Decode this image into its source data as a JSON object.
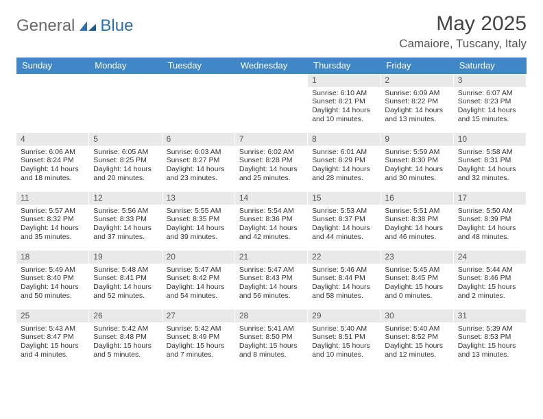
{
  "brand": {
    "general": "General",
    "blue": "Blue"
  },
  "title": "May 2025",
  "location": "Camaiore, Tuscany, Italy",
  "colors": {
    "header_bg": "#3f87c6",
    "header_fg": "#ffffff",
    "daynum_bg": "#e9e9e9",
    "text": "#333333",
    "logo_gray": "#6a6a6a",
    "logo_blue": "#2f6fb0"
  },
  "weekdays": [
    "Sunday",
    "Monday",
    "Tuesday",
    "Wednesday",
    "Thursday",
    "Friday",
    "Saturday"
  ],
  "grid": {
    "columns": 7,
    "rows": 5,
    "first_weekday_index": 4
  },
  "cells": [
    {
      "day": "",
      "sunrise": "",
      "sunset": "",
      "daylight": ""
    },
    {
      "day": "",
      "sunrise": "",
      "sunset": "",
      "daylight": ""
    },
    {
      "day": "",
      "sunrise": "",
      "sunset": "",
      "daylight": ""
    },
    {
      "day": "",
      "sunrise": "",
      "sunset": "",
      "daylight": ""
    },
    {
      "day": "1",
      "sunrise": "Sunrise: 6:10 AM",
      "sunset": "Sunset: 8:21 PM",
      "daylight": "Daylight: 14 hours and 10 minutes."
    },
    {
      "day": "2",
      "sunrise": "Sunrise: 6:09 AM",
      "sunset": "Sunset: 8:22 PM",
      "daylight": "Daylight: 14 hours and 13 minutes."
    },
    {
      "day": "3",
      "sunrise": "Sunrise: 6:07 AM",
      "sunset": "Sunset: 8:23 PM",
      "daylight": "Daylight: 14 hours and 15 minutes."
    },
    {
      "day": "4",
      "sunrise": "Sunrise: 6:06 AM",
      "sunset": "Sunset: 8:24 PM",
      "daylight": "Daylight: 14 hours and 18 minutes."
    },
    {
      "day": "5",
      "sunrise": "Sunrise: 6:05 AM",
      "sunset": "Sunset: 8:25 PM",
      "daylight": "Daylight: 14 hours and 20 minutes."
    },
    {
      "day": "6",
      "sunrise": "Sunrise: 6:03 AM",
      "sunset": "Sunset: 8:27 PM",
      "daylight": "Daylight: 14 hours and 23 minutes."
    },
    {
      "day": "7",
      "sunrise": "Sunrise: 6:02 AM",
      "sunset": "Sunset: 8:28 PM",
      "daylight": "Daylight: 14 hours and 25 minutes."
    },
    {
      "day": "8",
      "sunrise": "Sunrise: 6:01 AM",
      "sunset": "Sunset: 8:29 PM",
      "daylight": "Daylight: 14 hours and 28 minutes."
    },
    {
      "day": "9",
      "sunrise": "Sunrise: 5:59 AM",
      "sunset": "Sunset: 8:30 PM",
      "daylight": "Daylight: 14 hours and 30 minutes."
    },
    {
      "day": "10",
      "sunrise": "Sunrise: 5:58 AM",
      "sunset": "Sunset: 8:31 PM",
      "daylight": "Daylight: 14 hours and 32 minutes."
    },
    {
      "day": "11",
      "sunrise": "Sunrise: 5:57 AM",
      "sunset": "Sunset: 8:32 PM",
      "daylight": "Daylight: 14 hours and 35 minutes."
    },
    {
      "day": "12",
      "sunrise": "Sunrise: 5:56 AM",
      "sunset": "Sunset: 8:33 PM",
      "daylight": "Daylight: 14 hours and 37 minutes."
    },
    {
      "day": "13",
      "sunrise": "Sunrise: 5:55 AM",
      "sunset": "Sunset: 8:35 PM",
      "daylight": "Daylight: 14 hours and 39 minutes."
    },
    {
      "day": "14",
      "sunrise": "Sunrise: 5:54 AM",
      "sunset": "Sunset: 8:36 PM",
      "daylight": "Daylight: 14 hours and 42 minutes."
    },
    {
      "day": "15",
      "sunrise": "Sunrise: 5:53 AM",
      "sunset": "Sunset: 8:37 PM",
      "daylight": "Daylight: 14 hours and 44 minutes."
    },
    {
      "day": "16",
      "sunrise": "Sunrise: 5:51 AM",
      "sunset": "Sunset: 8:38 PM",
      "daylight": "Daylight: 14 hours and 46 minutes."
    },
    {
      "day": "17",
      "sunrise": "Sunrise: 5:50 AM",
      "sunset": "Sunset: 8:39 PM",
      "daylight": "Daylight: 14 hours and 48 minutes."
    },
    {
      "day": "18",
      "sunrise": "Sunrise: 5:49 AM",
      "sunset": "Sunset: 8:40 PM",
      "daylight": "Daylight: 14 hours and 50 minutes."
    },
    {
      "day": "19",
      "sunrise": "Sunrise: 5:48 AM",
      "sunset": "Sunset: 8:41 PM",
      "daylight": "Daylight: 14 hours and 52 minutes."
    },
    {
      "day": "20",
      "sunrise": "Sunrise: 5:47 AM",
      "sunset": "Sunset: 8:42 PM",
      "daylight": "Daylight: 14 hours and 54 minutes."
    },
    {
      "day": "21",
      "sunrise": "Sunrise: 5:47 AM",
      "sunset": "Sunset: 8:43 PM",
      "daylight": "Daylight: 14 hours and 56 minutes."
    },
    {
      "day": "22",
      "sunrise": "Sunrise: 5:46 AM",
      "sunset": "Sunset: 8:44 PM",
      "daylight": "Daylight: 14 hours and 58 minutes."
    },
    {
      "day": "23",
      "sunrise": "Sunrise: 5:45 AM",
      "sunset": "Sunset: 8:45 PM",
      "daylight": "Daylight: 15 hours and 0 minutes."
    },
    {
      "day": "24",
      "sunrise": "Sunrise: 5:44 AM",
      "sunset": "Sunset: 8:46 PM",
      "daylight": "Daylight: 15 hours and 2 minutes."
    },
    {
      "day": "25",
      "sunrise": "Sunrise: 5:43 AM",
      "sunset": "Sunset: 8:47 PM",
      "daylight": "Daylight: 15 hours and 4 minutes."
    },
    {
      "day": "26",
      "sunrise": "Sunrise: 5:42 AM",
      "sunset": "Sunset: 8:48 PM",
      "daylight": "Daylight: 15 hours and 5 minutes."
    },
    {
      "day": "27",
      "sunrise": "Sunrise: 5:42 AM",
      "sunset": "Sunset: 8:49 PM",
      "daylight": "Daylight: 15 hours and 7 minutes."
    },
    {
      "day": "28",
      "sunrise": "Sunrise: 5:41 AM",
      "sunset": "Sunset: 8:50 PM",
      "daylight": "Daylight: 15 hours and 8 minutes."
    },
    {
      "day": "29",
      "sunrise": "Sunrise: 5:40 AM",
      "sunset": "Sunset: 8:51 PM",
      "daylight": "Daylight: 15 hours and 10 minutes."
    },
    {
      "day": "30",
      "sunrise": "Sunrise: 5:40 AM",
      "sunset": "Sunset: 8:52 PM",
      "daylight": "Daylight: 15 hours and 12 minutes."
    },
    {
      "day": "31",
      "sunrise": "Sunrise: 5:39 AM",
      "sunset": "Sunset: 8:53 PM",
      "daylight": "Daylight: 15 hours and 13 minutes."
    }
  ]
}
